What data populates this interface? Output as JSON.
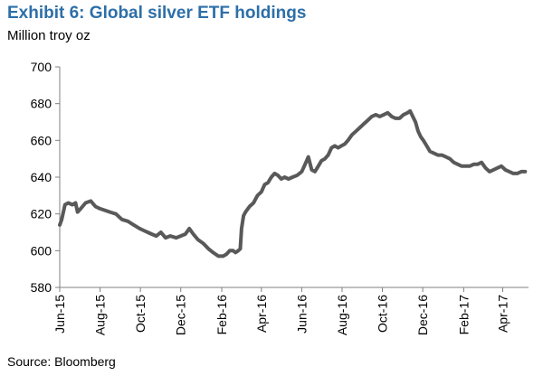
{
  "header": {
    "title": "Exhibit 6: Global silver ETF holdings",
    "unit": "Million troy oz"
  },
  "footer": {
    "source": "Source: Bloomberg"
  },
  "colors": {
    "title": "#2d6fa8",
    "line": "#595959",
    "axis": "#808080"
  },
  "chart_data": {
    "type": "line",
    "title": "Exhibit 6: Global silver ETF holdings",
    "ylabel": "Million troy oz",
    "xlabel": "",
    "ylim": [
      580,
      700
    ],
    "xlim": [
      "2015-06-01",
      "2017-05-10"
    ],
    "yticks": [
      580,
      600,
      620,
      640,
      660,
      680,
      700
    ],
    "xticks": [
      {
        "date": "2015-06-01",
        "label": "Jun-15"
      },
      {
        "date": "2015-08-01",
        "label": "Aug-15"
      },
      {
        "date": "2015-10-01",
        "label": "Oct-15"
      },
      {
        "date": "2015-12-01",
        "label": "Dec-15"
      },
      {
        "date": "2016-02-01",
        "label": "Feb-16"
      },
      {
        "date": "2016-04-01",
        "label": "Apr-16"
      },
      {
        "date": "2016-06-01",
        "label": "Jun-16"
      },
      {
        "date": "2016-08-01",
        "label": "Aug-16"
      },
      {
        "date": "2016-10-01",
        "label": "Oct-16"
      },
      {
        "date": "2016-12-01",
        "label": "Dec-16"
      },
      {
        "date": "2017-02-01",
        "label": "Feb-17"
      },
      {
        "date": "2017-04-01",
        "label": "Apr-17"
      }
    ],
    "grid": false,
    "legend": "none",
    "series": [
      {
        "x": [
          "2015-06-01",
          "2015-06-04",
          "2015-06-09",
          "2015-06-14",
          "2015-06-20",
          "2015-06-25",
          "2015-06-28",
          "2015-07-03",
          "2015-07-10",
          "2015-07-18",
          "2015-07-25",
          "2015-07-31",
          "2015-08-08",
          "2015-08-16",
          "2015-08-25",
          "2015-09-03",
          "2015-09-12",
          "2015-09-21",
          "2015-09-30",
          "2015-10-06",
          "2015-10-12",
          "2015-10-18",
          "2015-10-25",
          "2015-11-01",
          "2015-11-08",
          "2015-11-15",
          "2015-11-24",
          "2015-12-01",
          "2015-12-08",
          "2015-12-14",
          "2015-12-20",
          "2015-12-27",
          "2016-01-04",
          "2016-01-12",
          "2016-01-19",
          "2016-01-27",
          "2016-02-03",
          "2016-02-08",
          "2016-02-13",
          "2016-02-18",
          "2016-02-22",
          "2016-02-26",
          "2016-02-29",
          "2016-03-02",
          "2016-03-05",
          "2016-03-08",
          "2016-03-14",
          "2016-03-20",
          "2016-03-26",
          "2016-04-01",
          "2016-04-06",
          "2016-04-11",
          "2016-04-16",
          "2016-04-21",
          "2016-04-26",
          "2016-05-01",
          "2016-05-06",
          "2016-05-12",
          "2016-05-18",
          "2016-05-25",
          "2016-06-01",
          "2016-06-06",
          "2016-06-11",
          "2016-06-16",
          "2016-06-21",
          "2016-06-26",
          "2016-07-01",
          "2016-07-06",
          "2016-07-11",
          "2016-07-16",
          "2016-07-21",
          "2016-07-26",
          "2016-07-31",
          "2016-08-05",
          "2016-08-10",
          "2016-08-16",
          "2016-08-22",
          "2016-08-28",
          "2016-09-03",
          "2016-09-09",
          "2016-09-15",
          "2016-09-21",
          "2016-09-27",
          "2016-10-03",
          "2016-10-09",
          "2016-10-15",
          "2016-10-21",
          "2016-10-27",
          "2016-11-02",
          "2016-11-08",
          "2016-11-12",
          "2016-11-16",
          "2016-11-20",
          "2016-11-24",
          "2016-11-28",
          "2016-12-02",
          "2016-12-07",
          "2016-12-12",
          "2016-12-18",
          "2016-12-24",
          "2016-12-30",
          "2017-01-05",
          "2017-01-11",
          "2017-01-17",
          "2017-01-23",
          "2017-01-29",
          "2017-02-04",
          "2017-02-10",
          "2017-02-16",
          "2017-02-22",
          "2017-02-28",
          "2017-03-06",
          "2017-03-12",
          "2017-03-18",
          "2017-03-24",
          "2017-03-30",
          "2017-04-05",
          "2017-04-11",
          "2017-04-17",
          "2017-04-23",
          "2017-04-29",
          "2017-05-05"
        ],
        "values": [
          614,
          617,
          625,
          626,
          625,
          626,
          621,
          623,
          626,
          627,
          624,
          623,
          622,
          621,
          620,
          617,
          616,
          614,
          612,
          611,
          610,
          609,
          608,
          610,
          607,
          608,
          607,
          608,
          609,
          612,
          609,
          606,
          604,
          601,
          599,
          597,
          597,
          598,
          600,
          600,
          599,
          600,
          601,
          612,
          619,
          621,
          624,
          626,
          630,
          632,
          636,
          637,
          640,
          642,
          641,
          639,
          640,
          639,
          640,
          641,
          643,
          647,
          651,
          644,
          643,
          646,
          649,
          650,
          652,
          656,
          657,
          656,
          657,
          658,
          660,
          663,
          665,
          667,
          669,
          671,
          673,
          674,
          673,
          674,
          675,
          673,
          672,
          672,
          674,
          675,
          676,
          673,
          670,
          665,
          662,
          660,
          657,
          654,
          653,
          652,
          652,
          651,
          650,
          648,
          647,
          646,
          646,
          646,
          647,
          647,
          648,
          645,
          643,
          644,
          645,
          646,
          644,
          643,
          642,
          642,
          643,
          643
        ]
      }
    ]
  }
}
